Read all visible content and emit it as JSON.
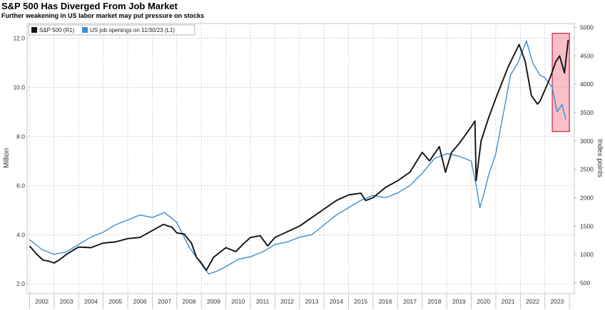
{
  "header": {
    "title": "S&P 500 Has Diverged From Job Market",
    "subtitle": "Further weakening in US labor market may put pressure on stocks"
  },
  "chart_data": {
    "type": "line",
    "grid": true,
    "legend_position": "top-left",
    "left_axis": {
      "label": "Million",
      "range": [
        1.6,
        12.6
      ],
      "ticks": [
        "2.0",
        "4.0",
        "6.0",
        "8.0",
        "10.0",
        "12.0"
      ]
    },
    "right_axis": {
      "label": "Index points",
      "range": [
        310,
        5070
      ],
      "ticks": [
        "500",
        "1000",
        "1500",
        "2000",
        "2500",
        "3000",
        "3500",
        "4000",
        "4500",
        "5000"
      ]
    },
    "x_axis": {
      "range": [
        2001.9,
        2024.2
      ],
      "labels": [
        "2002",
        "2003",
        "2004",
        "2005",
        "2006",
        "2007",
        "2008",
        "2009",
        "2010",
        "2011",
        "2012",
        "2013",
        "2014",
        "2015",
        "2016",
        "2017",
        "2018",
        "2019",
        "2020",
        "2021",
        "2022",
        "2023"
      ]
    },
    "highlight": {
      "x_range": [
        2023.3,
        2024.0
      ],
      "y_range_left": [
        8.2,
        12.2
      ],
      "color": "#f08a9a"
    },
    "series": [
      {
        "name": "S&P 500 (R1)",
        "axis": "right",
        "color": "#111111",
        "x": [
          2002.0,
          2002.3,
          2002.55,
          2002.8,
          2003.0,
          2003.2,
          2003.5,
          2003.8,
          2004.0,
          2004.5,
          2005.0,
          2005.5,
          2006.0,
          2006.5,
          2007.0,
          2007.45,
          2007.8,
          2008.0,
          2008.3,
          2008.6,
          2008.8,
          2009.0,
          2009.2,
          2009.5,
          2010.0,
          2010.4,
          2010.7,
          2011.0,
          2011.4,
          2011.7,
          2012.0,
          2012.5,
          2013.0,
          2013.5,
          2014.0,
          2014.5,
          2015.0,
          2015.5,
          2015.7,
          2016.0,
          2016.5,
          2017.0,
          2017.5,
          2018.0,
          2018.3,
          2018.7,
          2018.95,
          2019.2,
          2019.5,
          2020.0,
          2020.15,
          2020.2,
          2020.4,
          2020.7,
          2021.0,
          2021.5,
          2021.95,
          2022.2,
          2022.45,
          2022.7,
          2022.8,
          2023.0,
          2023.2,
          2023.45,
          2023.6,
          2023.8,
          2023.95
        ],
        "values": [
          1150,
          1000,
          900,
          880,
          850,
          900,
          1000,
          1080,
          1130,
          1120,
          1200,
          1220,
          1280,
          1300,
          1420,
          1530,
          1480,
          1380,
          1360,
          1200,
          950,
          850,
          720,
          950,
          1120,
          1050,
          1180,
          1300,
          1330,
          1150,
          1300,
          1400,
          1500,
          1650,
          1800,
          1950,
          2050,
          2080,
          1950,
          2000,
          2180,
          2300,
          2450,
          2800,
          2650,
          2900,
          2450,
          2800,
          2950,
          3250,
          3350,
          2300,
          3000,
          3400,
          3750,
          4300,
          4700,
          4400,
          3800,
          3650,
          3700,
          3900,
          4100,
          4400,
          4500,
          4200,
          4780
        ]
      },
      {
        "name": "US job openings on 11/30/23 (L1)",
        "axis": "left",
        "color": "#3a8fd4",
        "x": [
          2002.0,
          2002.5,
          2003.0,
          2003.5,
          2004.0,
          2004.5,
          2005.0,
          2005.5,
          2006.0,
          2006.5,
          2007.0,
          2007.5,
          2008.0,
          2008.5,
          2009.0,
          2009.3,
          2009.6,
          2010.0,
          2010.5,
          2011.0,
          2011.5,
          2012.0,
          2012.5,
          2013.0,
          2013.5,
          2014.0,
          2014.5,
          2015.0,
          2015.5,
          2016.0,
          2016.5,
          2017.0,
          2017.5,
          2018.0,
          2018.5,
          2019.0,
          2019.5,
          2020.0,
          2020.2,
          2020.35,
          2020.5,
          2020.7,
          2021.0,
          2021.3,
          2021.6,
          2021.9,
          2022.25,
          2022.5,
          2022.8,
          2023.0,
          2023.3,
          2023.5,
          2023.7,
          2023.85
        ],
        "values": [
          3.8,
          3.4,
          3.2,
          3.3,
          3.6,
          3.9,
          4.1,
          4.4,
          4.6,
          4.8,
          4.7,
          4.9,
          4.5,
          3.5,
          2.8,
          2.4,
          2.5,
          2.7,
          3.0,
          3.1,
          3.3,
          3.6,
          3.7,
          3.9,
          4.0,
          4.4,
          4.8,
          5.1,
          5.4,
          5.6,
          5.5,
          5.7,
          6.0,
          6.5,
          7.1,
          7.3,
          7.2,
          7.0,
          6.0,
          5.1,
          5.6,
          6.4,
          7.3,
          8.9,
          10.5,
          11.0,
          11.9,
          11.0,
          10.5,
          10.4,
          10.0,
          9.0,
          9.3,
          8.7
        ]
      }
    ]
  },
  "legend": [
    {
      "label": "S&P 500 (R1)",
      "color": "#111111"
    },
    {
      "label": "US job openings on 11/30/23 (L1)",
      "color": "#3a8fd4"
    }
  ]
}
